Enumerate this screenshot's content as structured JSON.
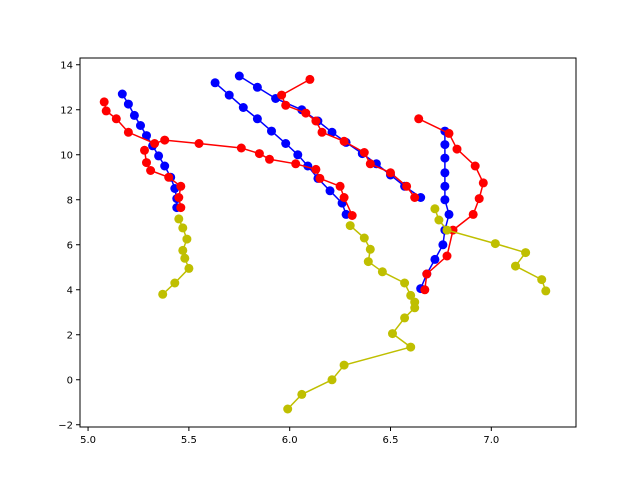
{
  "chart_data": {
    "type": "line",
    "title": "",
    "xlabel": "",
    "ylabel": "",
    "xlim": [
      4.96,
      7.42
    ],
    "ylim": [
      -2.1,
      14.3
    ],
    "grid": false,
    "legend": "none",
    "xticks": [
      5.0,
      5.5,
      6.0,
      6.5,
      7.0
    ],
    "xtick_labels": [
      "5.0",
      "5.5",
      "6.0",
      "6.5",
      "7.0"
    ],
    "yticks": [
      -2,
      0,
      2,
      4,
      6,
      8,
      10,
      12,
      14
    ],
    "ytick_labels": [
      "−2",
      "0",
      "2",
      "4",
      "6",
      "8",
      "10",
      "12",
      "14"
    ],
    "series": [
      {
        "color": "#0000ff",
        "points": [
          [
            5.17,
            12.7
          ],
          [
            5.2,
            12.25
          ],
          [
            5.23,
            11.75
          ],
          [
            5.26,
            11.3
          ],
          [
            5.29,
            10.85
          ],
          [
            5.32,
            10.4
          ],
          [
            5.35,
            9.95
          ],
          [
            5.38,
            9.5
          ],
          [
            5.41,
            9.0
          ],
          [
            5.43,
            8.5
          ],
          [
            5.44,
            8.05
          ],
          [
            5.44,
            7.65
          ]
        ]
      },
      {
        "color": "#0000ff",
        "points": [
          [
            5.63,
            13.2
          ],
          [
            5.7,
            12.65
          ],
          [
            5.77,
            12.1
          ],
          [
            5.84,
            11.6
          ],
          [
            5.91,
            11.05
          ],
          [
            5.98,
            10.5
          ],
          [
            6.04,
            10.0
          ],
          [
            6.09,
            9.5
          ],
          [
            6.14,
            8.95
          ],
          [
            6.2,
            8.4
          ],
          [
            6.26,
            7.85
          ],
          [
            6.28,
            7.35
          ]
        ]
      },
      {
        "color": "#0000ff",
        "points": [
          [
            5.75,
            13.5
          ],
          [
            5.84,
            13.0
          ],
          [
            5.93,
            12.5
          ],
          [
            6.06,
            12.0
          ],
          [
            6.14,
            11.5
          ],
          [
            6.21,
            11.0
          ],
          [
            6.28,
            10.55
          ],
          [
            6.36,
            10.05
          ],
          [
            6.43,
            9.6
          ],
          [
            6.5,
            9.1
          ],
          [
            6.57,
            8.6
          ],
          [
            6.65,
            8.1
          ]
        ]
      },
      {
        "color": "#0000ff",
        "points": [
          [
            6.77,
            11.05
          ],
          [
            6.77,
            10.45
          ],
          [
            6.77,
            9.85
          ],
          [
            6.77,
            9.2
          ],
          [
            6.77,
            8.6
          ],
          [
            6.77,
            8.0
          ],
          [
            6.79,
            7.35
          ],
          [
            6.77,
            6.65
          ],
          [
            6.76,
            6.0
          ],
          [
            6.72,
            5.35
          ],
          [
            6.68,
            4.7
          ],
          [
            6.65,
            4.05
          ]
        ]
      },
      {
        "color": "#ff0000",
        "points": [
          [
            6.1,
            13.35
          ],
          [
            5.96,
            12.65
          ],
          [
            5.98,
            12.2
          ],
          [
            6.08,
            11.85
          ],
          [
            6.13,
            11.5
          ],
          [
            6.16,
            11.0
          ],
          [
            6.27,
            10.6
          ],
          [
            6.37,
            10.1
          ],
          [
            6.4,
            9.6
          ],
          [
            6.5,
            9.2
          ],
          [
            6.58,
            8.6
          ],
          [
            6.62,
            8.1
          ]
        ]
      },
      {
        "color": "#ff0000",
        "points": [
          [
            5.08,
            12.35
          ],
          [
            5.09,
            11.95
          ],
          [
            5.14,
            11.6
          ],
          [
            5.2,
            11.0
          ],
          [
            5.33,
            10.5
          ],
          [
            5.38,
            10.65
          ],
          [
            5.55,
            10.5
          ],
          [
            5.76,
            10.3
          ],
          [
            5.85,
            10.05
          ],
          [
            5.9,
            9.8
          ],
          [
            6.03,
            9.6
          ],
          [
            6.13,
            9.35
          ],
          [
            6.15,
            8.95
          ],
          [
            6.25,
            8.6
          ],
          [
            6.27,
            8.1
          ],
          [
            6.31,
            7.3
          ]
        ]
      },
      {
        "color": "#ff0000",
        "points": [
          [
            5.28,
            10.2
          ],
          [
            5.29,
            9.65
          ],
          [
            5.31,
            9.3
          ],
          [
            5.4,
            9.0
          ],
          [
            5.46,
            8.6
          ],
          [
            5.45,
            8.1
          ],
          [
            5.46,
            7.65
          ]
        ]
      },
      {
        "color": "#ff0000",
        "points": [
          [
            6.64,
            11.6
          ],
          [
            6.79,
            10.95
          ],
          [
            6.83,
            10.25
          ],
          [
            6.92,
            9.5
          ],
          [
            6.96,
            8.75
          ],
          [
            6.94,
            8.05
          ],
          [
            6.91,
            7.35
          ],
          [
            6.81,
            6.65
          ],
          [
            6.78,
            5.5
          ],
          [
            6.68,
            4.7
          ],
          [
            6.67,
            4.0
          ]
        ]
      },
      {
        "color": "#bfbf00",
        "points": [
          [
            5.45,
            7.15
          ],
          [
            5.47,
            6.75
          ],
          [
            5.49,
            6.25
          ],
          [
            5.47,
            5.75
          ],
          [
            5.48,
            5.4
          ],
          [
            5.5,
            4.95
          ],
          [
            5.43,
            4.3
          ],
          [
            5.37,
            3.8
          ]
        ]
      },
      {
        "color": "#bfbf00",
        "points": [
          [
            6.3,
            6.85
          ],
          [
            6.37,
            6.3
          ],
          [
            6.4,
            5.8
          ],
          [
            6.39,
            5.25
          ],
          [
            6.46,
            4.8
          ],
          [
            6.57,
            4.3
          ],
          [
            6.6,
            3.75
          ],
          [
            6.62,
            3.45
          ],
          [
            6.62,
            3.2
          ],
          [
            6.57,
            2.75
          ],
          [
            6.51,
            2.05
          ],
          [
            6.6,
            1.45
          ],
          [
            6.27,
            0.65
          ],
          [
            6.21,
            0.0
          ],
          [
            6.06,
            -0.65
          ],
          [
            5.99,
            -1.3
          ]
        ]
      },
      {
        "color": "#bfbf00",
        "points": [
          [
            6.72,
            7.6
          ],
          [
            6.74,
            7.1
          ],
          [
            6.78,
            6.65
          ],
          [
            7.02,
            6.05
          ],
          [
            7.17,
            5.65
          ],
          [
            7.12,
            5.05
          ],
          [
            7.25,
            4.45
          ],
          [
            7.27,
            3.95
          ]
        ]
      }
    ]
  }
}
